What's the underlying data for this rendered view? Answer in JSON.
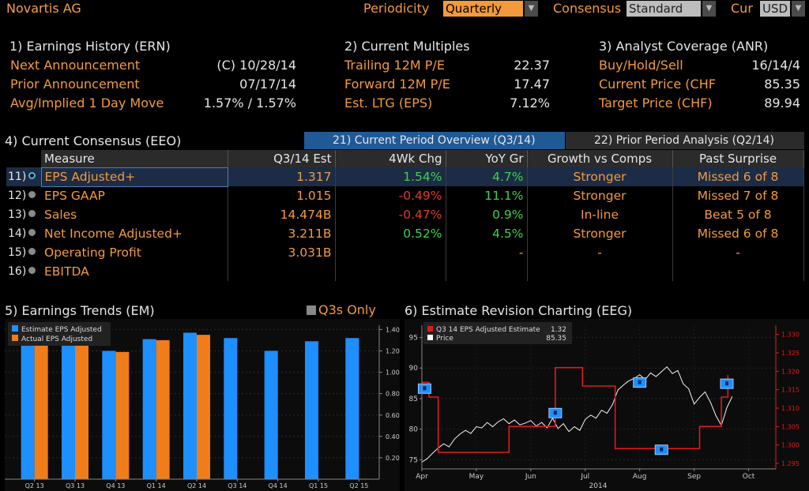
{
  "header": {
    "title": "Novartis AG",
    "periodicity_label": "Periodicity",
    "periodicity_value": "Quarterly",
    "consensus_label": "Consensus",
    "consensus_value": "Standard",
    "currency_label": "Cur",
    "currency_value": "USD"
  },
  "earnings_history": {
    "title": "1) Earnings History (ERN)",
    "rows": [
      {
        "label": "Next Announcement",
        "value": "(C)  10/28/14"
      },
      {
        "label": "Prior Announcement",
        "value": "07/17/14"
      },
      {
        "label": "Avg/Implied 1 Day Move",
        "value": "1.57% / 1.57%"
      }
    ]
  },
  "current_multiples": {
    "title": "2) Current Multiples",
    "rows": [
      {
        "label": "Trailing 12M P/E",
        "value": "22.37"
      },
      {
        "label": "Forward 12M P/E",
        "value": "17.47"
      },
      {
        "label": "Est. LTG (EPS)",
        "value": "7.12%"
      }
    ]
  },
  "analyst_coverage": {
    "title": "3) Analyst Coverage (ANR)",
    "rows": [
      {
        "label": "Buy/Hold/Sell",
        "value": "16/14/4"
      },
      {
        "label": "Current Price (CHF",
        "value": "85.35"
      },
      {
        "label": "Target Price (CHF)",
        "value": "89.94"
      }
    ]
  },
  "consensus": {
    "title": "4) Current Consensus (EEO)",
    "tab_active": "21) Current Period Overview (Q3/14)",
    "tab_other": "22) Prior Period Analysis (Q2/14)",
    "headers": [
      "Measure",
      "Q3/14 Est",
      "4Wk Chg",
      "YoY Gr",
      "Growth vs Comps",
      "Past Surprise"
    ],
    "rows": [
      {
        "num": "11)",
        "measure": "EPS Adjusted+",
        "est": "1.317",
        "chg": "1.54%",
        "yoy": "4.7%",
        "growth": "Stronger",
        "surprise": "Missed 6 of 8"
      },
      {
        "num": "12)",
        "measure": "EPS GAAP",
        "est": "1.015",
        "chg": "-0.49%",
        "yoy": "11.1%",
        "growth": "Stronger",
        "surprise": "Missed 7 of 8"
      },
      {
        "num": "13)",
        "measure": "Sales",
        "est": "14.474B",
        "chg": "-0.47%",
        "yoy": "0.9%",
        "growth": "In-line",
        "surprise": "Beat 5 of 8"
      },
      {
        "num": "14)",
        "measure": "Net Income Adjusted+",
        "est": "3.211B",
        "chg": "0.52%",
        "yoy": "4.5%",
        "growth": "Stronger",
        "surprise": "Missed 6 of 8"
      },
      {
        "num": "15)",
        "measure": "Operating Profit",
        "est": "3.031B",
        "chg": "",
        "yoy": "-",
        "growth": "-",
        "surprise": "-"
      },
      {
        "num": "16)",
        "measure": "EBITDA",
        "est": "",
        "chg": "",
        "yoy": "",
        "growth": "",
        "surprise": ""
      }
    ]
  },
  "earnings_trends": {
    "title": "5) Earnings Trends (EM)",
    "q3_toggle": "Q3s Only"
  },
  "revision": {
    "title": "6) Estimate Revision Charting (EEG)",
    "year_label": "2014"
  },
  "colors": {
    "accent": "#f39a3c",
    "blue": "#1e8fff",
    "orange": "#f07d1a",
    "red": "#e01b1b",
    "green": "#3dd24a"
  },
  "chart_data": [
    {
      "type": "bar",
      "categories": [
        "Q2 13",
        "Q3 13",
        "Q4 13",
        "Q1 14",
        "Q2 14",
        "Q3 14",
        "Q4 14",
        "Q1 15",
        "Q2 15"
      ],
      "series": [
        {
          "name": "Estimate EPS Adjusted",
          "values": [
            1.31,
            1.3,
            1.2,
            1.31,
            1.37,
            1.32,
            1.2,
            1.29,
            1.32
          ]
        },
        {
          "name": "Actual EPS Adjusted",
          "values": [
            1.3,
            1.28,
            1.19,
            1.3,
            1.35,
            null,
            null,
            null,
            null
          ]
        }
      ],
      "yticks": [
        "0.20",
        "0.40",
        "0.60",
        "0.80",
        "1.00",
        "1.20",
        "1.40"
      ],
      "ylim": [
        0,
        1.44
      ]
    },
    {
      "type": "line",
      "xticks": [
        "Apr",
        "May",
        "Jun",
        "Jul",
        "Aug",
        "Sep",
        "Oct"
      ],
      "xlabel": "2014",
      "left_yticks": [
        "75",
        "80",
        "85",
        "90",
        "95"
      ],
      "left_ylim": [
        73.5,
        97
      ],
      "right_yticks": [
        "1.295",
        "1.300",
        "1.305",
        "1.310",
        "1.315",
        "1.320",
        "1.325",
        "1.330"
      ],
      "right_ylim": [
        1.2935,
        1.3325
      ],
      "series": [
        {
          "name": "Q3 14 EPS Adjusted Estimate",
          "last": "1.32",
          "axis": "right",
          "points": [
            [
              0,
              1.317
            ],
            [
              0.13,
              1.317
            ],
            [
              0.13,
              1.313
            ],
            [
              0.3,
              1.313
            ],
            [
              0.3,
              1.298
            ],
            [
              1.6,
              1.298
            ],
            [
              1.6,
              1.305
            ],
            [
              2.45,
              1.305
            ],
            [
              2.45,
              1.321
            ],
            [
              2.95,
              1.321
            ],
            [
              2.95,
              1.316
            ],
            [
              3.55,
              1.316
            ],
            [
              3.55,
              1.299
            ],
            [
              5.1,
              1.299
            ],
            [
              5.1,
              1.305
            ],
            [
              5.5,
              1.305
            ],
            [
              5.5,
              1.313
            ],
            [
              5.62,
              1.313
            ],
            [
              5.62,
              1.319
            ]
          ]
        },
        {
          "name": "Price",
          "last": "85.35",
          "axis": "left",
          "points": [
            [
              0,
              74.6
            ],
            [
              0.1,
              75.2
            ],
            [
              0.2,
              76.1
            ],
            [
              0.3,
              76.9
            ],
            [
              0.4,
              77.6
            ],
            [
              0.5,
              77.1
            ],
            [
              0.6,
              78.4
            ],
            [
              0.7,
              79.2
            ],
            [
              0.8,
              79.8
            ],
            [
              0.9,
              79.3
            ],
            [
              1.0,
              80.4
            ],
            [
              1.1,
              80.2
            ],
            [
              1.2,
              81.1
            ],
            [
              1.3,
              80.4
            ],
            [
              1.4,
              81.2
            ],
            [
              1.5,
              81.7
            ],
            [
              1.6,
              80.9
            ],
            [
              1.7,
              81.5
            ],
            [
              1.8,
              80.7
            ],
            [
              1.9,
              81.0
            ],
            [
              2.0,
              81.4
            ],
            [
              2.1,
              80.5
            ],
            [
              2.2,
              81.1
            ],
            [
              2.3,
              80.2
            ],
            [
              2.4,
              81.8
            ],
            [
              2.5,
              80.1
            ],
            [
              2.6,
              80.9
            ],
            [
              2.7,
              79.6
            ],
            [
              2.8,
              80.4
            ],
            [
              2.9,
              79.8
            ],
            [
              3.0,
              81.6
            ],
            [
              3.1,
              82.3
            ],
            [
              3.2,
              81.8
            ],
            [
              3.3,
              83.1
            ],
            [
              3.4,
              82.6
            ],
            [
              3.5,
              84.0
            ],
            [
              3.6,
              86.4
            ],
            [
              3.7,
              87.2
            ],
            [
              3.8,
              87.9
            ],
            [
              3.9,
              88.3
            ],
            [
              4.0,
              88.9
            ],
            [
              4.1,
              88.1
            ],
            [
              4.2,
              89.2
            ],
            [
              4.3,
              88.6
            ],
            [
              4.4,
              89.4
            ],
            [
              4.5,
              90.2
            ],
            [
              4.6,
              89.1
            ],
            [
              4.7,
              89.6
            ],
            [
              4.8,
              87.4
            ],
            [
              4.9,
              86.6
            ],
            [
              5.0,
              84.1
            ],
            [
              5.1,
              85.2
            ],
            [
              5.2,
              86.1
            ],
            [
              5.3,
              84.4
            ],
            [
              5.4,
              82.2
            ],
            [
              5.5,
              80.6
            ],
            [
              5.6,
              83.5
            ],
            [
              5.7,
              85.35
            ]
          ]
        }
      ]
    }
  ]
}
